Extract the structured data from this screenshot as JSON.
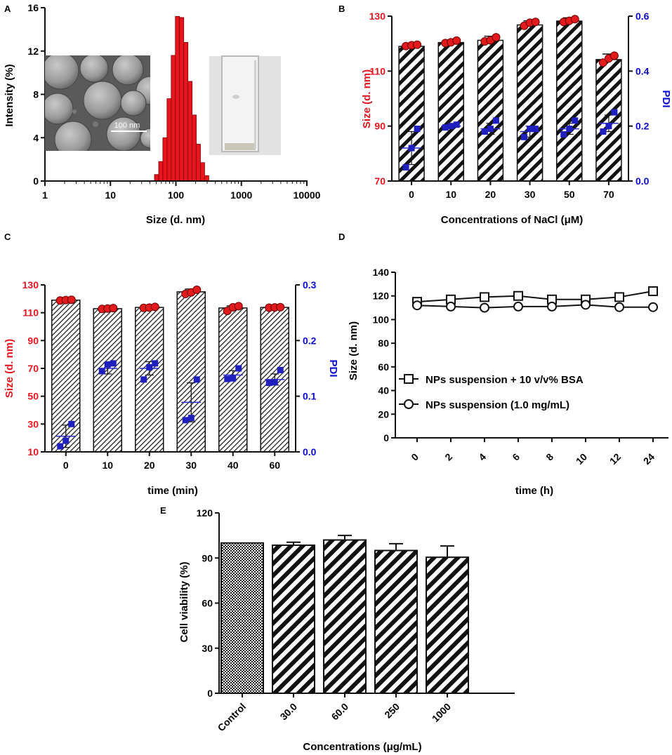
{
  "colors": {
    "red": "#e31a1c",
    "blue": "#1f1fbf",
    "axis_red": "#e8141e",
    "axis_blue": "#0a0ad0",
    "black": "#111111"
  },
  "chart_data": [
    {
      "panel": "A",
      "type": "bar",
      "title": "",
      "xlabel": "Size (d. nm)",
      "ylabel": "Intensity (%)",
      "xscale": "log",
      "xlim": [
        1,
        10000
      ],
      "ylim": [
        0,
        16
      ],
      "xticks": [
        "1",
        "10",
        "100",
        "1000",
        "10000"
      ],
      "yticks": [
        "0",
        "4",
        "8",
        "12",
        "16"
      ],
      "x": [
        50.7,
        58.8,
        68.1,
        78.8,
        91.3,
        105.7,
        122.4,
        141.8,
        164.2,
        190.1,
        220.2,
        255.0,
        295.3
      ],
      "values": [
        0.6,
        1.8,
        4.0,
        7.6,
        11.6,
        15.2,
        15.1,
        12.8,
        9.2,
        6.1,
        3.4,
        1.7,
        0.5
      ],
      "insets": [
        {
          "name": "sem-image",
          "scale_bar_label": "100 nm"
        },
        {
          "name": "cuvette-photo"
        }
      ]
    },
    {
      "panel": "B",
      "type": "bar",
      "xlabel": "Concentrations of NaCl (μM)",
      "ylabel": "Size (d. nm)",
      "ylabel_right": "PDI",
      "categories": [
        "0",
        "10",
        "20",
        "30",
        "50",
        "70"
      ],
      "ylim": [
        70,
        130
      ],
      "ylim_right": [
        0,
        0.6
      ],
      "yticks": [
        "70",
        "90",
        "110",
        "130"
      ],
      "yticks_right": [
        "0.0",
        "0.2",
        "0.4",
        "0.6"
      ],
      "series": [
        {
          "name": "Size",
          "axis": "left",
          "mark": "bar",
          "values": [
            119.0,
            120.4,
            121.2,
            126.8,
            128.2,
            114.2
          ],
          "errors": [
            0.8,
            0.8,
            1.5,
            1.5,
            1.2,
            2.0
          ],
          "points": [
            [
              119.1,
              119.4,
              119.6
            ],
            [
              120.2,
              120.5,
              121.1
            ],
            [
              120.8,
              121.2,
              122.3
            ],
            [
              126.5,
              127.6,
              127.9
            ],
            [
              127.9,
              128.3,
              128.9
            ],
            [
              113.1,
              114.6,
              115.6
            ]
          ]
        },
        {
          "name": "PDI",
          "axis": "right",
          "mark": "scatter",
          "values": [
            0.12,
            0.2,
            0.19,
            0.18,
            0.19,
            0.21
          ],
          "errors": [
            0.06,
            0.005,
            0.02,
            0.02,
            0.02,
            0.03
          ],
          "points": [
            [
              0.05,
              0.12,
              0.19
            ],
            [
              0.195,
              0.2,
              0.205
            ],
            [
              0.18,
              0.19,
              0.22
            ],
            [
              0.16,
              0.19,
              0.19
            ],
            [
              0.17,
              0.19,
              0.22
            ],
            [
              0.18,
              0.2,
              0.25
            ]
          ]
        }
      ]
    },
    {
      "panel": "C",
      "type": "bar",
      "xlabel": "time (min)",
      "ylabel": "Size (d. nm)",
      "ylabel_right": "PDI",
      "categories": [
        "0",
        "10",
        "20",
        "30",
        "40",
        "60"
      ],
      "ylim": [
        10,
        130
      ],
      "ylim_right": [
        0,
        0.3
      ],
      "yticks": [
        "10",
        "30",
        "50",
        "70",
        "90",
        "110",
        "130"
      ],
      "yticks_right": [
        "0.0",
        "0.1",
        "0.2",
        "0.3"
      ],
      "series": [
        {
          "name": "Size",
          "axis": "left",
          "mark": "bar",
          "values": [
            119.0,
            112.9,
            113.8,
            125.0,
            113.4,
            113.8
          ],
          "errors": [
            0.5,
            0.5,
            0.3,
            2.0,
            1.5,
            0.3
          ],
          "points": [
            [
              118.8,
              119.1,
              119.3
            ],
            [
              112.7,
              113.0,
              113.3
            ],
            [
              113.5,
              113.7,
              114.2
            ],
            [
              123.5,
              124.6,
              126.5
            ],
            [
              111.3,
              113.9,
              114.7
            ],
            [
              113.6,
              113.8,
              114.0
            ]
          ]
        },
        {
          "name": "PDI",
          "axis": "right",
          "mark": "scatter",
          "values": [
            0.028,
            0.15,
            0.15,
            0.089,
            0.138,
            0.13
          ],
          "errors": [
            0.02,
            0.01,
            0.012,
            0.035,
            0.008,
            0.01
          ],
          "points": [
            [
              0.01,
              0.02,
              0.05
            ],
            [
              0.145,
              0.157,
              0.159
            ],
            [
              0.13,
              0.152,
              0.159
            ],
            [
              0.057,
              0.061,
              0.13
            ],
            [
              0.131,
              0.132,
              0.15
            ],
            [
              0.124,
              0.125,
              0.147
            ]
          ]
        }
      ]
    },
    {
      "panel": "D",
      "type": "line",
      "xlabel": "time (h)",
      "ylabel": "Size (d. nm)",
      "categories": [
        "0",
        "2",
        "4",
        "6",
        "8",
        "10",
        "12",
        "24"
      ],
      "ylim": [
        0,
        140
      ],
      "yticks": [
        "0",
        "20",
        "40",
        "60",
        "80",
        "100",
        "120",
        "140"
      ],
      "series": [
        {
          "name": "NPs suspension + 10 v/v% BSA",
          "marker": "square",
          "values": [
            115,
            117,
            119,
            120,
            117,
            117,
            119,
            124
          ],
          "errors": [
            1,
            1,
            1,
            1,
            1,
            1,
            1,
            3
          ]
        },
        {
          "name": "NPs suspension (1.0 mg/mL)",
          "marker": "circle",
          "values": [
            112,
            111,
            110,
            111,
            111,
            112.5,
            110.5,
            110.5
          ],
          "errors": [
            1,
            1,
            1,
            1,
            1,
            3,
            1,
            1
          ]
        }
      ],
      "legend": "center-left"
    },
    {
      "panel": "E",
      "type": "bar",
      "xlabel": "Concentrations (μg/mL)",
      "ylabel": "Cell viability (%)",
      "categories": [
        "Control",
        "30.0",
        "60.0",
        "250",
        "1000"
      ],
      "values": [
        100,
        98.5,
        102,
        95,
        90.5
      ],
      "errors": [
        0,
        2,
        3,
        4.5,
        7.5
      ],
      "ylim": [
        0,
        120
      ],
      "yticks": [
        "0",
        "30",
        "60",
        "90",
        "120"
      ]
    }
  ]
}
